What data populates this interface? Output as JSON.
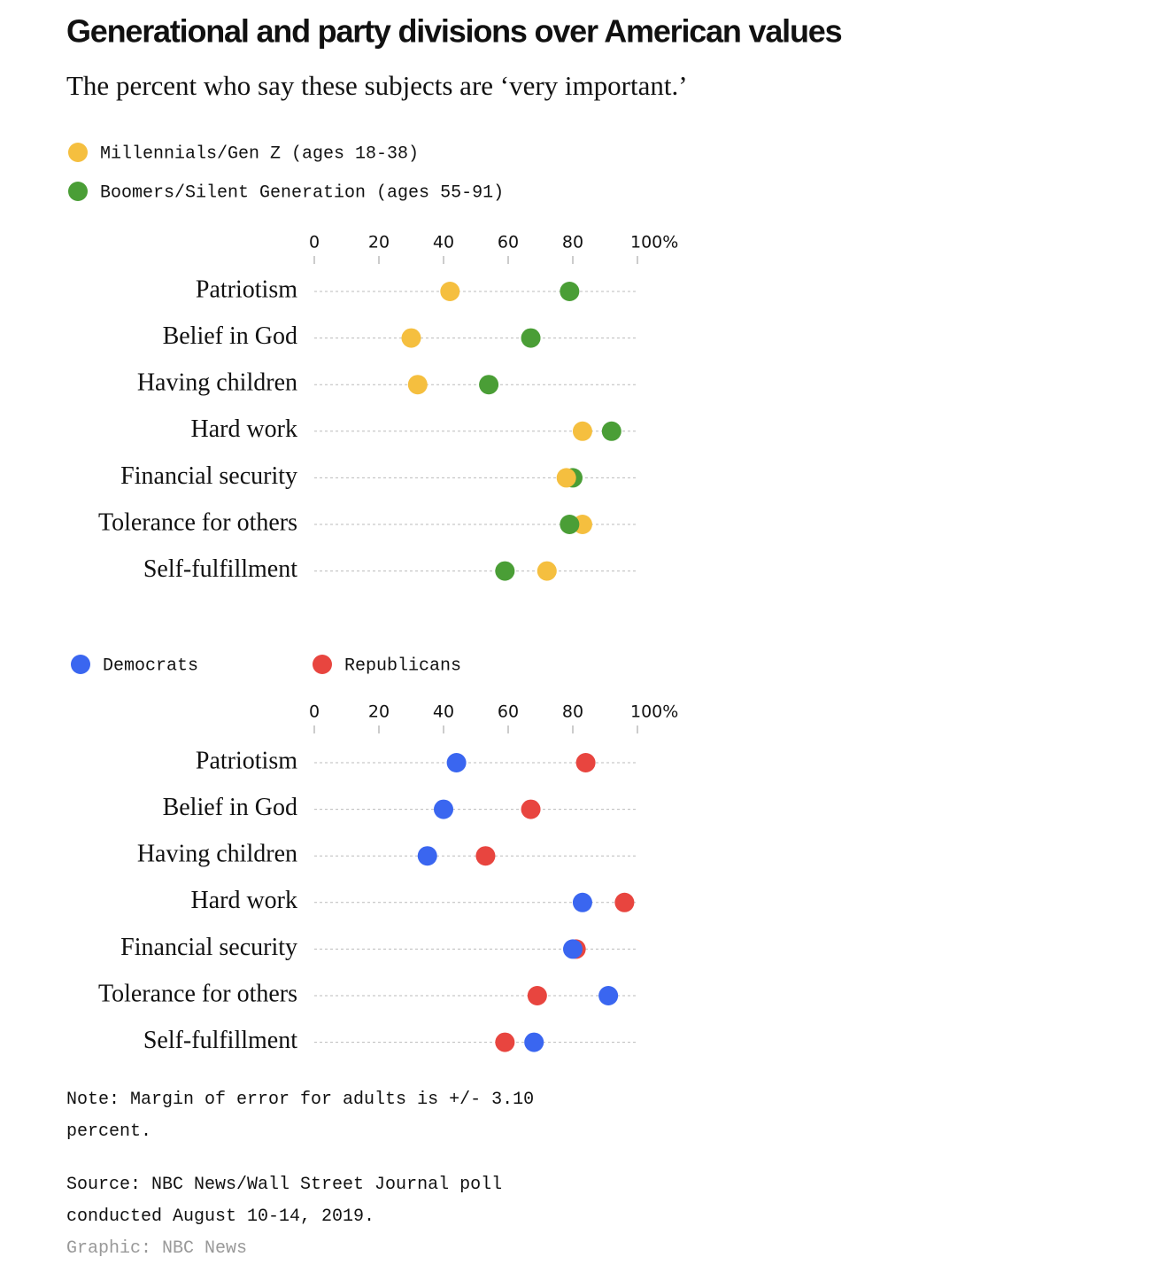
{
  "title": "Generational and party divisions over American values",
  "subtitle": "The percent who say these subjects are ‘very important.’",
  "note": "Note: Margin of error for adults is +/- 3.10 percent.",
  "source": "Source: NBC News/Wall Street Journal poll conducted August 10-14, 2019.",
  "credit": "Graphic: NBC News",
  "chart_data": [
    {
      "type": "dot",
      "legend": "vertical",
      "categories": [
        "Patriotism",
        "Belief in God",
        "Having children",
        "Hard work",
        "Financial security",
        "Tolerance for others",
        "Self-fulfillment"
      ],
      "series": [
        {
          "name": "Millennials/Gen Z (ages 18-38)",
          "color": "#f5bf3f",
          "values": [
            42,
            30,
            32,
            83,
            78,
            83,
            72
          ]
        },
        {
          "name": "Boomers/Silent Generation (ages 55-91)",
          "color": "#4a9e36",
          "values": [
            79,
            67,
            54,
            92,
            80,
            79,
            59
          ]
        }
      ],
      "xlim": [
        0,
        100
      ],
      "xticks": [
        0,
        20,
        40,
        60,
        80,
        {
          "value": 100,
          "label": "100%"
        }
      ]
    },
    {
      "type": "dot",
      "legend": "horizontal",
      "categories": [
        "Patriotism",
        "Belief in God",
        "Having children",
        "Hard work",
        "Financial security",
        "Tolerance for others",
        "Self-fulfillment"
      ],
      "series": [
        {
          "name": "Democrats",
          "color": "#3a66f0",
          "values": [
            44,
            40,
            35,
            83,
            80,
            91,
            68
          ]
        },
        {
          "name": "Republicans",
          "color": "#e8453f",
          "values": [
            84,
            67,
            53,
            96,
            81,
            69,
            59
          ]
        }
      ],
      "xlim": [
        0,
        100
      ],
      "xticks": [
        0,
        20,
        40,
        60,
        80,
        {
          "value": 100,
          "label": "100%"
        }
      ]
    }
  ]
}
